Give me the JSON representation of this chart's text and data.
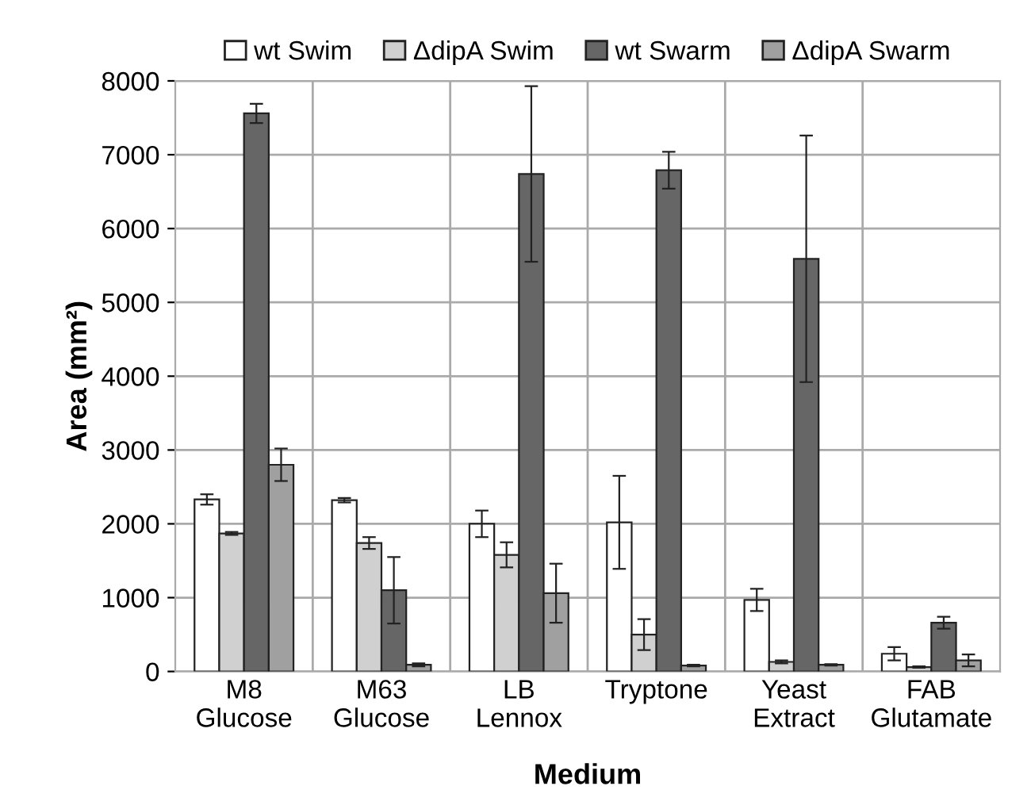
{
  "chart_data": {
    "type": "bar",
    "xlabel": "Medium",
    "ylabel": "Area (mm²)",
    "categories": [
      "M8\nGlucose",
      "M63\nGlucose",
      "LB\nLennox",
      "Tryptone",
      "Yeast\nExtract",
      "FAB\nGlutamate"
    ],
    "series": [
      {
        "name": "wt Swim",
        "color": "#ffffff",
        "values": [
          2330,
          2320,
          2000,
          2020,
          970,
          240
        ],
        "errors": [
          70,
          30,
          180,
          630,
          150,
          90
        ]
      },
      {
        "name": "ΔdipA Swim",
        "color": "#d0d0d0",
        "values": [
          1870,
          1740,
          1580,
          500,
          130,
          60
        ],
        "errors": [
          20,
          80,
          170,
          210,
          20,
          10
        ]
      },
      {
        "name": "wt Swarm",
        "color": "#666666",
        "values": [
          7560,
          1100,
          6740,
          6790,
          5590,
          660
        ],
        "errors": [
          130,
          450,
          1190,
          250,
          1670,
          80
        ]
      },
      {
        "name": "ΔdipA Swarm",
        "color": "#a0a0a0",
        "values": [
          2800,
          90,
          1060,
          80,
          90,
          150
        ],
        "errors": [
          220,
          20,
          400,
          10,
          10,
          80
        ]
      }
    ],
    "ylim": [
      0,
      8000
    ],
    "yticks": [
      0,
      1000,
      2000,
      3000,
      4000,
      5000,
      6000,
      7000,
      8000
    ],
    "grid": true,
    "legend": "top"
  }
}
